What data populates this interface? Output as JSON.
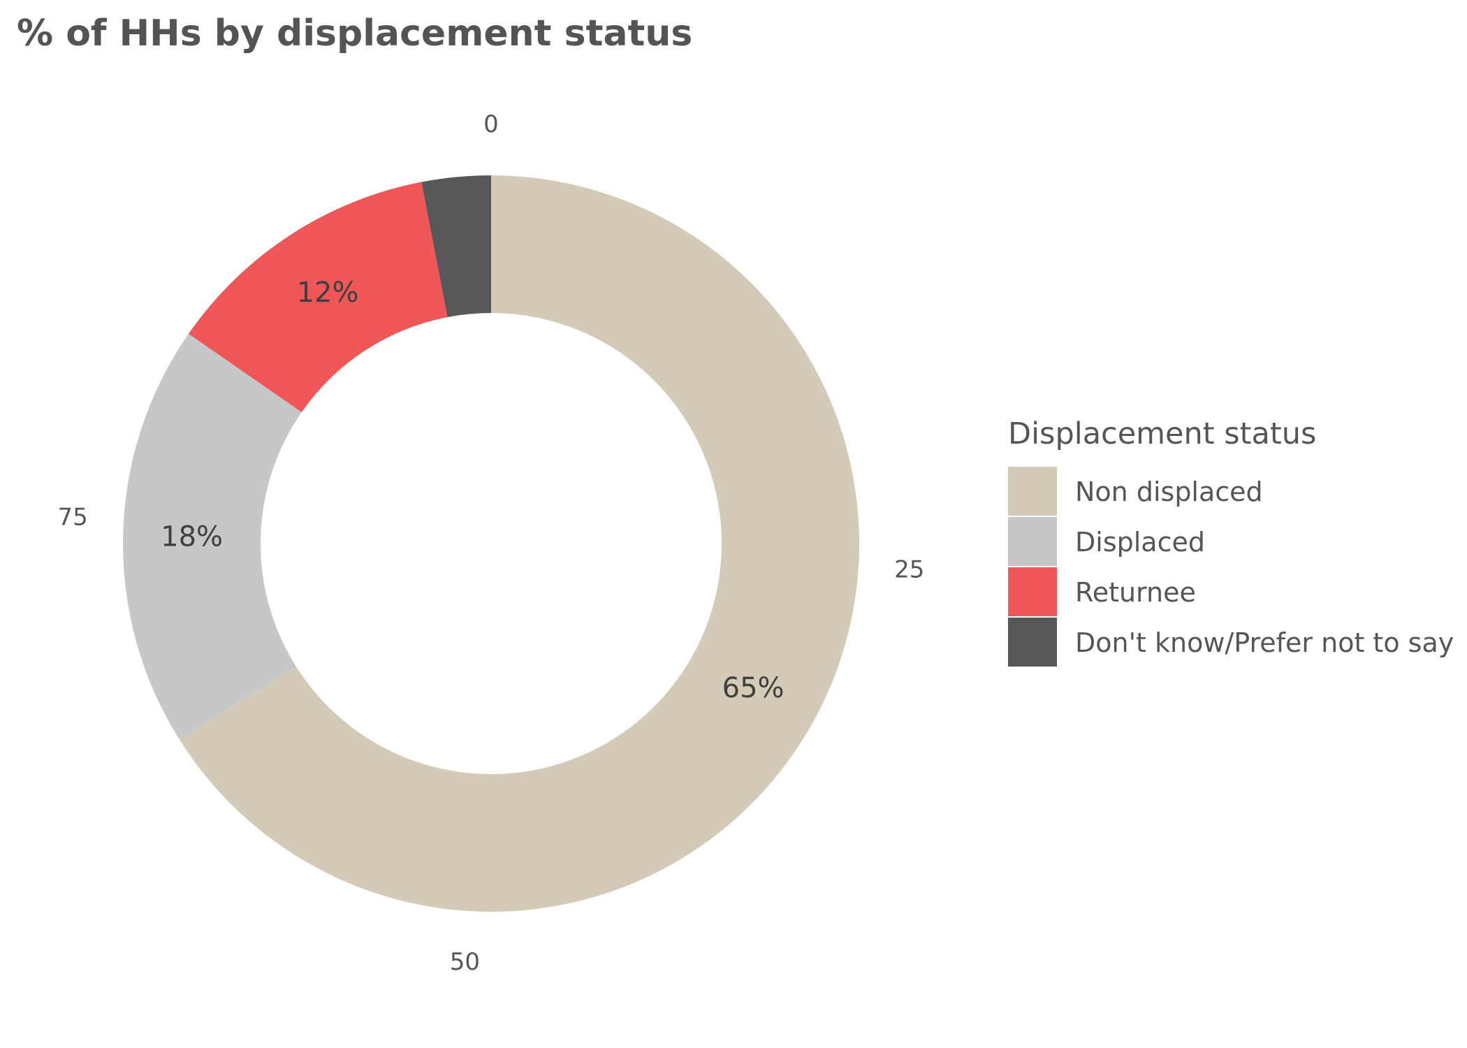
{
  "title": "% of HHs by displacement status",
  "chart_data": {
    "type": "pie",
    "variant": "donut",
    "title": "% of HHs by displacement status",
    "categories": [
      "Non displaced",
      "Displaced",
      "Returnee",
      "Don't know/Prefer not to say"
    ],
    "values": [
      65.4,
      18.4,
      12.2,
      3.0
    ],
    "data_labels": [
      "65%",
      "18%",
      "12%",
      ""
    ],
    "colors": [
      "#D3CBB8",
      "#C6C7C9",
      "#EF5758",
      "#58585A"
    ],
    "angular_axis": {
      "range": [
        0,
        100
      ],
      "ticks": [
        "0",
        "25",
        "50",
        "75"
      ]
    },
    "legend": {
      "title": "Displacement status",
      "placement": "right"
    }
  }
}
